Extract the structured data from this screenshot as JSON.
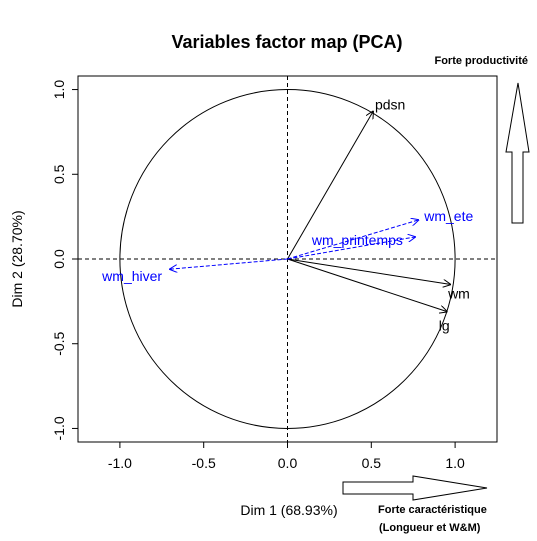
{
  "chart_data": {
    "type": "scatter",
    "title": "Variables factor map (PCA)",
    "xlabel": "Dim 1 (68.93%)",
    "ylabel": "Dim 2 (28.70%)",
    "xlim": [
      -1.25,
      1.25
    ],
    "ylim": [
      -1.08,
      1.08
    ],
    "x_ticks": [
      -1.0,
      -0.5,
      0.0,
      0.5,
      1.0
    ],
    "x_tick_labels": [
      "-1.0",
      "-0.5",
      "0.0",
      "0.5",
      "1.0"
    ],
    "y_ticks": [
      -1.0,
      -0.5,
      0.0,
      0.5,
      1.0
    ],
    "y_tick_labels": [
      "-1.0",
      "-0.5",
      "0.0",
      "0.5",
      "1.0"
    ],
    "correlation_circle": true,
    "reference_lines": "dashed lines at x = 0 and y = 0",
    "variables": [
      {
        "name": "pdsn",
        "x": 0.51,
        "y": 0.87,
        "style": "solid",
        "color": "#000000"
      },
      {
        "name": "wm",
        "x": 0.97,
        "y": -0.15,
        "style": "solid",
        "color": "#000000"
      },
      {
        "name": "lg",
        "x": 0.95,
        "y": -0.31,
        "style": "solid",
        "color": "#000000"
      },
      {
        "name": "wm_ete",
        "x": 0.78,
        "y": 0.23,
        "style": "dashed",
        "color": "#0000FF"
      },
      {
        "name": "wm_printemps",
        "x": 0.76,
        "y": 0.13,
        "style": "dashed",
        "color": "#0000FF"
      },
      {
        "name": "wm_hiver",
        "x": -0.7,
        "y": -0.06,
        "style": "dashed",
        "color": "#0000FF"
      }
    ]
  },
  "annotations": {
    "top_right": "Forte productivité",
    "bottom_right_line1": "Forte caractéristique",
    "bottom_right_line2": "(Longueur et W&M)"
  }
}
